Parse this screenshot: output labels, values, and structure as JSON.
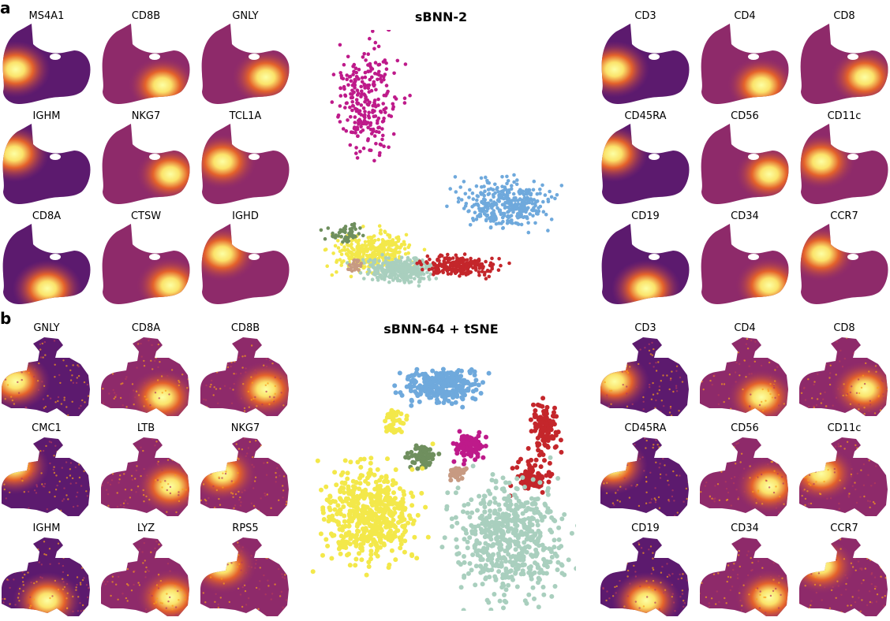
{
  "panel_a": {
    "letter": "a",
    "title": "sBNN-2",
    "left_markers": [
      "MS4A1",
      "CD8B",
      "GNLY",
      "IGHM",
      "NKG7",
      "TCL1A",
      "CD8A",
      "CTSW",
      "IGHD"
    ],
    "right_markers": [
      "CD3",
      "CD4",
      "CD8",
      "CD45RA",
      "CD56",
      "CD11c",
      "CD19",
      "CD34",
      "CCR7"
    ]
  },
  "panel_b": {
    "letter": "b",
    "title": "sBNN-64 + tSNE",
    "left_markers": [
      "GNLY",
      "CD8A",
      "CD8B",
      "CMC1",
      "LTB",
      "NKG7",
      "IGHM",
      "LYZ",
      "RPS5"
    ],
    "right_markers": [
      "CD3",
      "CD4",
      "CD8",
      "CD45RA",
      "CD56",
      "CD11c",
      "CD19",
      "CD34",
      "CCR7"
    ]
  },
  "colors": {
    "magenta": "#be1a8a",
    "blue": "#6fa9dc",
    "yellow": "#f3e84a",
    "mint": "#a9cfbe",
    "red": "#c4262b",
    "green": "#6f8f5e",
    "tan": "#c79a82",
    "colormap": [
      "#1a0f45",
      "#5c1a6e",
      "#8e2a6a",
      "#b53a5a",
      "#e4622b",
      "#f99d1c",
      "#fbe36b",
      "#fcffa4"
    ]
  }
}
